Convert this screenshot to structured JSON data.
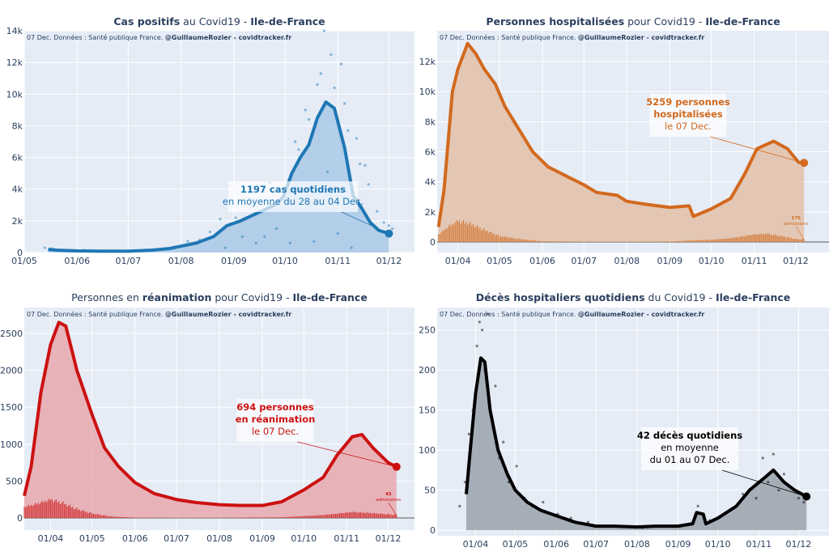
{
  "source_note": {
    "plain": "07 Dec. Données : Santé publique France. ",
    "bold": "@GuillaumeRozier - covidtracker.fr"
  },
  "chart_data": [
    {
      "type": "line",
      "title": [
        {
          "text": "Cas positifs",
          "bold": true
        },
        {
          "text": " au Covid19 - ",
          "bold": false
        },
        {
          "text": "Ile-de-France",
          "bold": true
        }
      ],
      "color": "#1f77b4",
      "fill": "#a9c9e6",
      "x_range": [
        "2020-05-01",
        "2020-12-16"
      ],
      "y_range": [
        0,
        14000
      ],
      "y_ticks": [
        0,
        2000,
        4000,
        6000,
        8000,
        10000,
        12000,
        14000
      ],
      "y_tick_labels": [
        "0",
        "2k",
        "4k",
        "6k",
        "8k",
        "10k",
        "12k",
        "14k"
      ],
      "x_ticks": [
        "2020-05-01",
        "2020-06-01",
        "2020-07-01",
        "2020-08-01",
        "2020-09-01",
        "2020-10-01",
        "2020-11-01",
        "2020-12-01"
      ],
      "x_tick_labels": [
        "01/05",
        "01/06",
        "01/07",
        "01/08",
        "01/09",
        "01/10",
        "01/11",
        "01/12"
      ],
      "grid": true,
      "series": [
        {
          "type": "line",
          "x": [
            "2020-05-15",
            "2020-05-20",
            "2020-06-01",
            "2020-06-15",
            "2020-07-01",
            "2020-07-15",
            "2020-07-25",
            "2020-08-01",
            "2020-08-10",
            "2020-08-20",
            "2020-08-28",
            "2020-09-05",
            "2020-09-15",
            "2020-09-25",
            "2020-09-30",
            "2020-10-05",
            "2020-10-10",
            "2020-10-15",
            "2020-10-20",
            "2020-10-25",
            "2020-10-30",
            "2020-11-05",
            "2020-11-10",
            "2020-11-15",
            "2020-11-20",
            "2020-11-25",
            "2020-12-01"
          ],
          "y": [
            200,
            150,
            100,
            80,
            80,
            150,
            250,
            400,
            600,
            1000,
            1700,
            2000,
            2500,
            3000,
            3500,
            5000,
            6000,
            6800,
            8500,
            9500,
            9100,
            6600,
            3600,
            2800,
            1900,
            1400,
            1197
          ]
        },
        {
          "type": "scatter",
          "x": [
            "2020-05-13",
            "2020-05-17",
            "2020-06-05",
            "2020-07-10",
            "2020-07-28",
            "2020-08-05",
            "2020-08-12",
            "2020-08-18",
            "2020-08-24",
            "2020-08-27",
            "2020-09-02",
            "2020-09-06",
            "2020-09-10",
            "2020-09-14",
            "2020-09-19",
            "2020-09-22",
            "2020-09-26",
            "2020-10-02",
            "2020-10-04",
            "2020-10-07",
            "2020-10-09",
            "2020-10-13",
            "2020-10-15",
            "2020-10-18",
            "2020-10-20",
            "2020-10-22",
            "2020-10-24",
            "2020-10-26",
            "2020-10-28",
            "2020-10-30",
            "2020-11-01",
            "2020-11-03",
            "2020-11-05",
            "2020-11-07",
            "2020-11-09",
            "2020-11-12",
            "2020-11-14",
            "2020-11-17",
            "2020-11-19",
            "2020-11-24",
            "2020-11-28",
            "2020-12-01",
            "2020-12-03"
          ],
          "y": [
            300,
            250,
            150,
            100,
            300,
            700,
            800,
            1300,
            2100,
            300,
            2200,
            1000,
            3400,
            600,
            1000,
            4400,
            1500,
            4000,
            600,
            7000,
            6500,
            9000,
            8400,
            700,
            10600,
            11300,
            14000,
            5100,
            12500,
            10400,
            1200,
            11900,
            9400,
            7700,
            300,
            7200,
            5600,
            5500,
            4300,
            2600,
            1900,
            1700,
            1500
          ]
        }
      ],
      "annotation": {
        "lines": [
          {
            "text": "1197 cas quotidiens",
            "bold": true
          },
          {
            "text": "en moyenne du 28 au 04 Dec.",
            "bold": false
          }
        ],
        "point": [
          "2020-12-01",
          1197
        ]
      }
    },
    {
      "type": "area",
      "title": [
        {
          "text": "Personnes hospitalisées",
          "bold": true
        },
        {
          "text": " pour Covid19 - ",
          "bold": false
        },
        {
          "text": "Ile-de-France",
          "bold": true
        }
      ],
      "color": "#d2691e",
      "fill": "#e3c1a8",
      "x_range": [
        "2020-03-17",
        "2020-12-25"
      ],
      "y_range": [
        -700,
        14045
      ],
      "y_ticks": [
        0,
        2000,
        4000,
        6000,
        8000,
        10000,
        12000
      ],
      "y_tick_labels": [
        "0",
        "2k",
        "4k",
        "6k",
        "8k",
        "10k",
        "12k"
      ],
      "x_ticks": [
        "2020-04-01",
        "2020-05-01",
        "2020-06-01",
        "2020-07-01",
        "2020-08-01",
        "2020-09-01",
        "2020-10-01",
        "2020-11-01",
        "2020-12-01"
      ],
      "x_tick_labels": [
        "01/04",
        "01/05",
        "01/06",
        "01/07",
        "01/08",
        "01/09",
        "01/10",
        "01/11",
        "01/12"
      ],
      "grid": true,
      "series": [
        {
          "type": "line",
          "x": [
            "2020-03-18",
            "2020-03-22",
            "2020-03-28",
            "2020-04-01",
            "2020-04-08",
            "2020-04-14",
            "2020-04-20",
            "2020-04-28",
            "2020-05-05",
            "2020-05-15",
            "2020-05-25",
            "2020-06-05",
            "2020-06-20",
            "2020-07-01",
            "2020-07-10",
            "2020-07-25",
            "2020-08-01",
            "2020-08-15",
            "2020-09-01",
            "2020-09-15",
            "2020-09-18",
            "2020-10-01",
            "2020-10-15",
            "2020-10-25",
            "2020-11-03",
            "2020-11-15",
            "2020-11-25",
            "2020-12-03",
            "2020-12-07"
          ],
          "y": [
            1000,
            3500,
            10000,
            11500,
            13200,
            12500,
            11500,
            10500,
            9000,
            7500,
            6000,
            5000,
            4300,
            3800,
            3300,
            3100,
            2700,
            2500,
            2300,
            2400,
            1700,
            2200,
            2900,
            4500,
            6200,
            6700,
            6200,
            5300,
            5259
          ]
        },
        {
          "type": "bars",
          "name": "admissions",
          "x": [
            "2020-03-18",
            "2020-03-25",
            "2020-04-01",
            "2020-04-10",
            "2020-04-20",
            "2020-05-01",
            "2020-05-15",
            "2020-06-01",
            "2020-07-01",
            "2020-08-01",
            "2020-09-01",
            "2020-09-15",
            "2020-10-01",
            "2020-10-15",
            "2020-11-01",
            "2020-11-10",
            "2020-11-20",
            "2020-12-01",
            "2020-12-07"
          ],
          "y": [
            500,
            1000,
            1400,
            1200,
            800,
            400,
            200,
            50,
            20,
            20,
            30,
            100,
            150,
            250,
            500,
            550,
            400,
            200,
            175
          ]
        }
      ],
      "bar_label": {
        "value": "175",
        "unit": "admissions"
      },
      "annotation": {
        "lines": [
          {
            "text": "5259 personnes",
            "bold": true
          },
          {
            "text": "hospitalisées",
            "bold": true
          },
          {
            "text": "le 07 Dec.",
            "bold": false
          }
        ],
        "point": [
          "2020-12-07",
          5259
        ]
      }
    },
    {
      "type": "area",
      "title": [
        {
          "text": "Personnes en ",
          "bold": false
        },
        {
          "text": "réanimation",
          "bold": true
        },
        {
          "text": " pour Covid19 - ",
          "bold": false
        },
        {
          "text": "Ile-de-France",
          "bold": true
        }
      ],
      "color": "#cc1111",
      "fill": "#e8a9ae",
      "x_range": [
        "2020-03-13",
        "2020-12-20"
      ],
      "y_range": [
        -164,
        2851
      ],
      "y_ticks": [
        0,
        500,
        1000,
        1500,
        2000,
        2500
      ],
      "y_tick_labels": [
        "0",
        "500",
        "1000",
        "1500",
        "2000",
        "2500"
      ],
      "x_ticks": [
        "2020-04-01",
        "2020-05-01",
        "2020-06-01",
        "2020-07-01",
        "2020-08-01",
        "2020-09-01",
        "2020-10-01",
        "2020-11-01",
        "2020-12-01"
      ],
      "x_tick_labels": [
        "01/04",
        "01/05",
        "01/06",
        "01/07",
        "01/08",
        "01/09",
        "01/10",
        "01/11",
        "01/12"
      ],
      "grid": true,
      "series": [
        {
          "type": "line",
          "x": [
            "2020-03-13",
            "2020-03-18",
            "2020-03-25",
            "2020-04-01",
            "2020-04-07",
            "2020-04-12",
            "2020-04-20",
            "2020-05-01",
            "2020-05-10",
            "2020-05-20",
            "2020-06-01",
            "2020-06-15",
            "2020-07-01",
            "2020-07-15",
            "2020-08-01",
            "2020-08-15",
            "2020-09-01",
            "2020-09-15",
            "2020-10-01",
            "2020-10-15",
            "2020-10-25",
            "2020-11-05",
            "2020-11-12",
            "2020-11-20",
            "2020-12-01",
            "2020-12-07"
          ],
          "y": [
            300,
            700,
            1700,
            2350,
            2650,
            2600,
            2000,
            1400,
            950,
            700,
            480,
            330,
            250,
            210,
            180,
            170,
            170,
            220,
            380,
            550,
            850,
            1100,
            1130,
            950,
            750,
            694
          ]
        },
        {
          "type": "bars",
          "name": "admissions",
          "x": [
            "2020-03-13",
            "2020-03-20",
            "2020-04-01",
            "2020-04-10",
            "2020-04-20",
            "2020-05-01",
            "2020-05-15",
            "2020-06-01",
            "2020-07-01",
            "2020-08-01",
            "2020-09-15",
            "2020-10-15",
            "2020-11-05",
            "2020-11-15",
            "2020-12-07"
          ],
          "y": [
            150,
            180,
            250,
            200,
            120,
            60,
            20,
            5,
            3,
            3,
            10,
            40,
            80,
            70,
            43
          ]
        }
      ],
      "bar_label": {
        "value": "43",
        "unit": "admissions"
      },
      "annotation": {
        "lines": [
          {
            "text": "694 personnes",
            "bold": true
          },
          {
            "text": "en réanimation",
            "bold": true
          },
          {
            "text": "le 07 Dec.",
            "bold": false
          }
        ],
        "point": [
          "2020-12-07",
          694
        ]
      }
    },
    {
      "type": "area",
      "title": [
        {
          "text": "Décès hospitaliers quotidiens",
          "bold": true
        },
        {
          "text": " du Covid19 - ",
          "bold": false
        },
        {
          "text": "Ile-de-France",
          "bold": true
        }
      ],
      "color": "#000000",
      "fill": "#9aa2ab",
      "x_range": [
        "2020-03-03",
        "2020-12-24"
      ],
      "y_range": [
        -7,
        278
      ],
      "y_ticks": [
        0,
        50,
        100,
        150,
        200,
        250
      ],
      "y_tick_labels": [
        "0",
        "50",
        "100",
        "150",
        "200",
        "250"
      ],
      "x_ticks": [
        "2020-04-01",
        "2020-05-01",
        "2020-06-01",
        "2020-07-01",
        "2020-08-01",
        "2020-09-01",
        "2020-10-01",
        "2020-11-01",
        "2020-12-01"
      ],
      "x_tick_labels": [
        "01/04",
        "01/05",
        "01/06",
        "01/07",
        "01/08",
        "01/09",
        "01/10",
        "01/11",
        "01/12"
      ],
      "grid": true,
      "series": [
        {
          "type": "line",
          "x": [
            "2020-03-25",
            "2020-03-28",
            "2020-04-01",
            "2020-04-05",
            "2020-04-08",
            "2020-04-12",
            "2020-04-18",
            "2020-04-25",
            "2020-05-01",
            "2020-05-10",
            "2020-05-20",
            "2020-06-01",
            "2020-06-15",
            "2020-07-01",
            "2020-07-15",
            "2020-08-01",
            "2020-08-15",
            "2020-09-01",
            "2020-09-12",
            "2020-09-15",
            "2020-09-20",
            "2020-09-22",
            "2020-10-01",
            "2020-10-15",
            "2020-10-25",
            "2020-11-05",
            "2020-11-12",
            "2020-11-20",
            "2020-11-28",
            "2020-12-07"
          ],
          "y": [
            45,
            100,
            170,
            215,
            210,
            150,
            100,
            70,
            50,
            35,
            25,
            18,
            10,
            5,
            5,
            4,
            5,
            5,
            8,
            22,
            20,
            8,
            15,
            30,
            50,
            65,
            75,
            60,
            50,
            42
          ]
        },
        {
          "type": "scatter",
          "x": [
            "2020-03-20",
            "2020-03-24",
            "2020-03-27",
            "2020-03-30",
            "2020-04-02",
            "2020-04-04",
            "2020-04-06",
            "2020-04-08",
            "2020-04-10",
            "2020-04-13",
            "2020-04-16",
            "2020-04-19",
            "2020-04-22",
            "2020-04-26",
            "2020-05-02",
            "2020-05-08",
            "2020-05-14",
            "2020-05-22",
            "2020-06-02",
            "2020-06-12",
            "2020-06-25",
            "2020-07-10",
            "2020-08-05",
            "2020-09-05",
            "2020-09-16",
            "2020-09-25",
            "2020-10-10",
            "2020-10-20",
            "2020-10-30",
            "2020-11-04",
            "2020-11-08",
            "2020-11-12",
            "2020-11-16",
            "2020-11-20",
            "2020-11-24",
            "2020-12-01",
            "2020-12-05"
          ],
          "y": [
            30,
            60,
            120,
            150,
            230,
            260,
            250,
            200,
            270,
            140,
            180,
            90,
            110,
            60,
            80,
            40,
            30,
            35,
            20,
            15,
            10,
            5,
            3,
            6,
            30,
            12,
            25,
            45,
            40,
            90,
            60,
            95,
            50,
            70,
            55,
            40,
            35
          ]
        }
      ],
      "annotation": {
        "lines": [
          {
            "text": "42 décès quotidiens",
            "bold": true
          },
          {
            "text": "en moyenne",
            "bold": false
          },
          {
            "text": "du 01 au 07 Dec.",
            "bold": false
          }
        ],
        "point": [
          "2020-12-07",
          42
        ]
      }
    }
  ]
}
